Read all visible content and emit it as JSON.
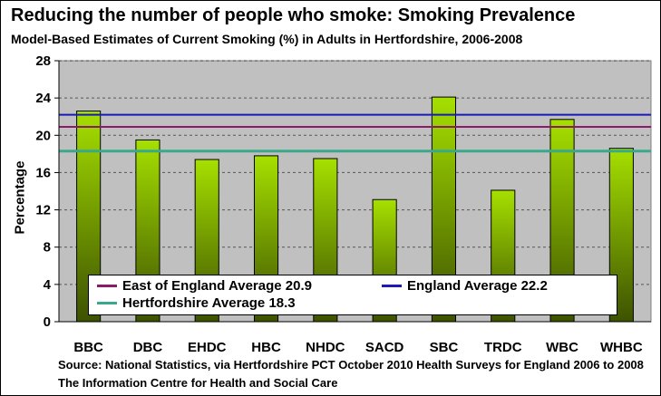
{
  "chart_data": {
    "type": "bar",
    "title": "Reducing the number of people who smoke: Smoking Prevalence",
    "subtitle": "Model-Based Estimates of Current Smoking (%) in Adults in Hertfordshire, 2006-2008",
    "xlabel": "",
    "ylabel": "Percentage",
    "ylim": [
      0,
      28
    ],
    "yticks": [
      "0",
      "4",
      "8",
      "12",
      "16",
      "20",
      "24",
      "28"
    ],
    "categories": [
      "BBC",
      "DBC",
      "EHDC",
      "HBC",
      "NHDC",
      "SACD",
      "SBC",
      "TRDC",
      "WBC",
      "WHBC"
    ],
    "values": [
      22.6,
      19.5,
      17.4,
      17.8,
      17.5,
      13.1,
      24.1,
      14.1,
      21.7,
      18.6
    ],
    "grid": true,
    "plot_background": "#c0c0c0",
    "bar_colors": {
      "top": "#a6e000",
      "bottom": "#3d5200"
    },
    "reference_lines": [
      {
        "label": "East of England Average 20.9",
        "value": 20.9,
        "color": "#8b1a6b"
      },
      {
        "label": "England Average 22.2",
        "value": 22.2,
        "color": "#1a1ab8"
      },
      {
        "label": "Hertfordshire Average 18.3",
        "value": 18.3,
        "color": "#3aa88a"
      }
    ],
    "legend_position": "bottom-inside",
    "source": "Source: National Statistics, via Hertfordshire PCT October 2010 Health Surveys for England 2006 to 2008 The Information Centre for Health and Social Care"
  }
}
